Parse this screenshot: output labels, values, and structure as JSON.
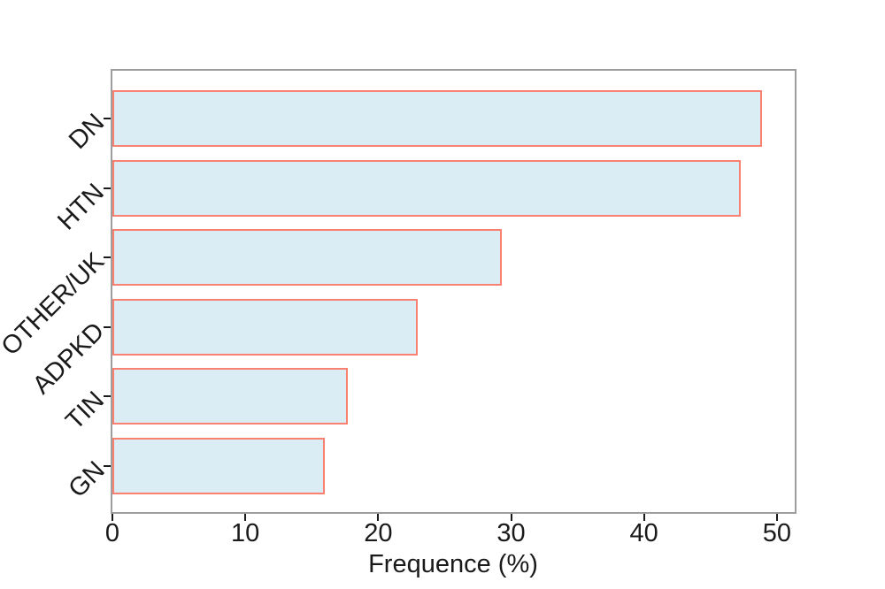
{
  "chart_data": {
    "type": "bar",
    "orientation": "horizontal",
    "title": "",
    "xlabel": "Frequence (%)",
    "ylabel": "",
    "categories": [
      "DN",
      "HTN",
      "OTHER/UK",
      "ADPKD",
      "TIN",
      "GN"
    ],
    "values": [
      48.9,
      47.3,
      29.3,
      23.0,
      17.7,
      16.0
    ],
    "xticks": [
      0,
      10,
      20,
      30,
      40,
      50
    ],
    "xlim": [
      0,
      51.34
    ],
    "grid": false,
    "legend": null,
    "colors": {
      "bar_fill": "#daedf4",
      "bar_edge": "#fa8072",
      "spine": "#9e9e9e",
      "tick": "#1a1a1a",
      "text": "#1a1a1a"
    }
  }
}
